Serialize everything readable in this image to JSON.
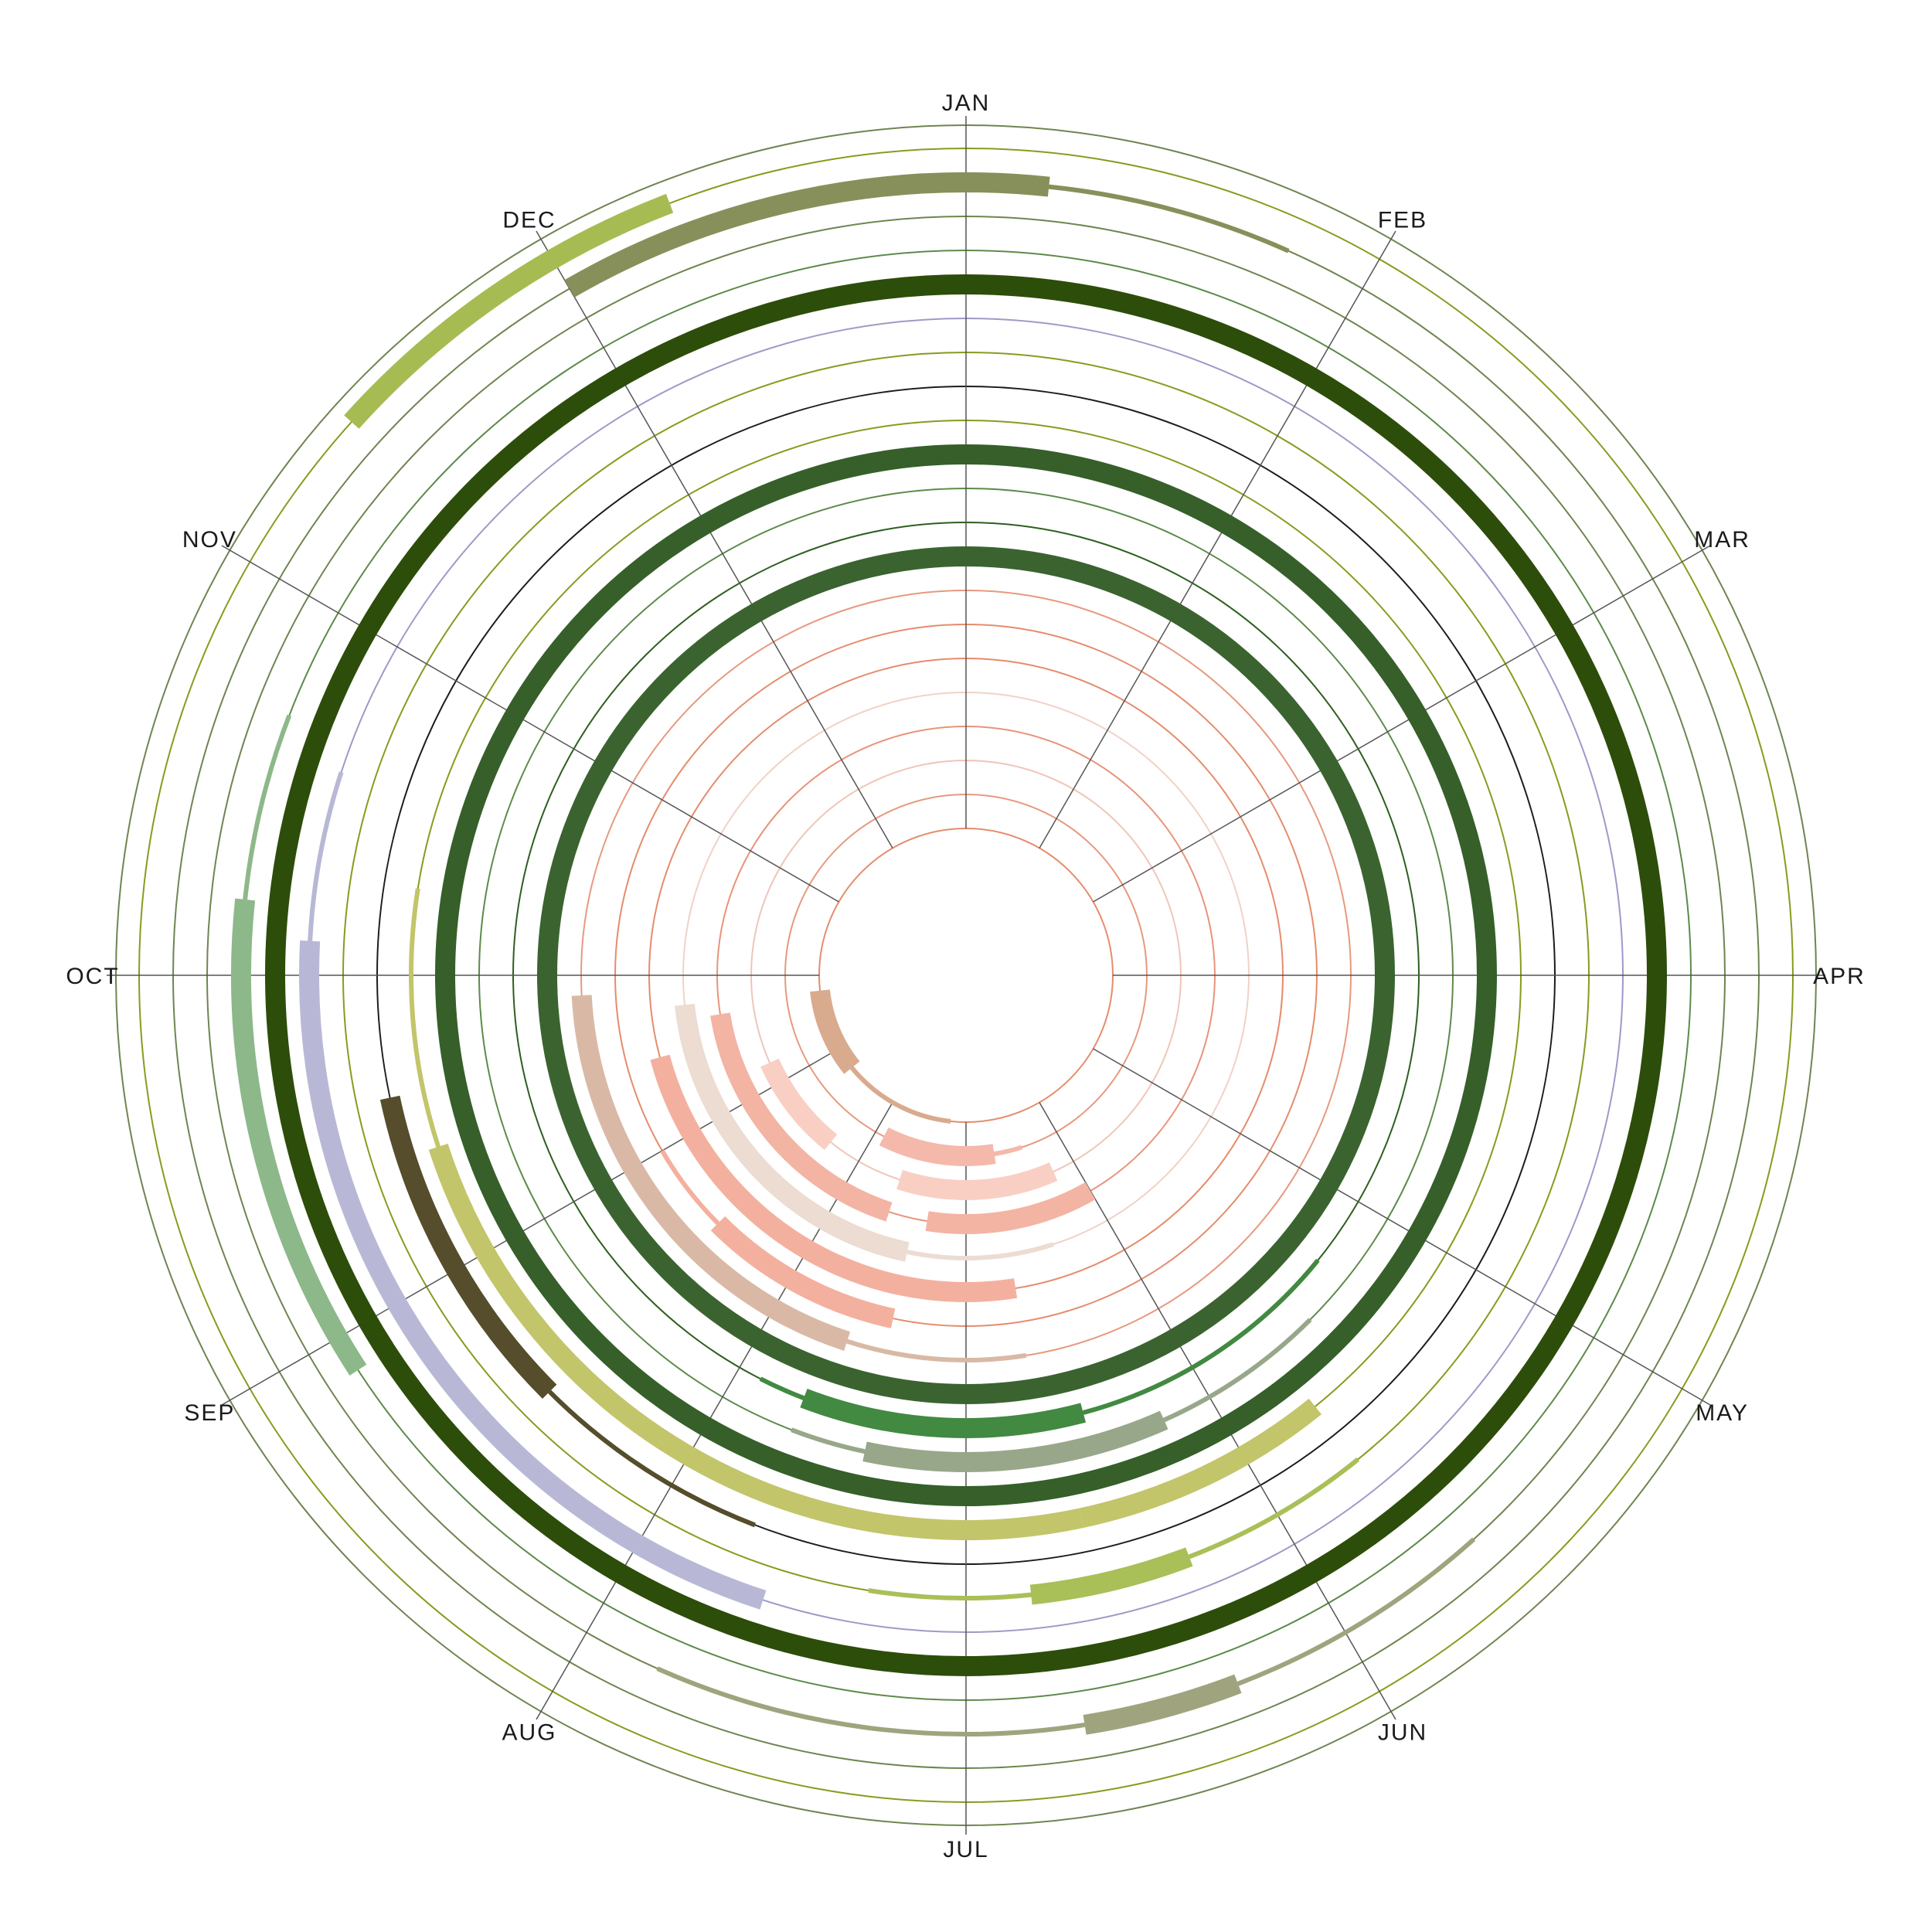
{
  "chart_data": {
    "type": "radial-timeline",
    "title": "",
    "months": [
      "JAN",
      "FEB",
      "MAR",
      "APR",
      "MAY",
      "JUN",
      "JUL",
      "AUG",
      "SEP",
      "OCT",
      "NOV",
      "DEC"
    ],
    "start_month": "JAN",
    "direction": "clockwise",
    "legend": "none",
    "rings": [
      {
        "ring": 1,
        "color": "#d9ab8e",
        "guide_color": "#e58c6c",
        "bars": [
          {
            "start": 6.2,
            "end": 8.7,
            "weight": "thin"
          },
          {
            "start": 7.7,
            "end": 8.8,
            "weight": "thick"
          }
        ]
      },
      {
        "ring": 2,
        "color": "#f4b9ab",
        "guide_color": "#e7997f",
        "bars": [
          {
            "start": 5.7,
            "end": 6.9,
            "weight": "thick"
          },
          {
            "start": 5.4,
            "end": 5.7,
            "weight": "thin"
          }
        ]
      },
      {
        "ring": 3,
        "color": "#f9cfc4",
        "guide_color": "#f0c5b8",
        "bars": [
          {
            "start": 5.2,
            "end": 6.6,
            "weight": "thick"
          },
          {
            "start": 7.3,
            "end": 8.2,
            "weight": "thick"
          }
        ]
      },
      {
        "ring": 4,
        "color": "#f3b4a4",
        "guide_color": "#e8947a",
        "bars": [
          {
            "start": 5.0,
            "end": 6.3,
            "weight": "thick"
          },
          {
            "start": 6.6,
            "end": 8.7,
            "weight": "thick"
          }
        ]
      },
      {
        "ring": 5,
        "color": "#ecdcd2",
        "guide_color": "#f0d2c6",
        "bars": [
          {
            "start": 5.4,
            "end": 6.4,
            "weight": "thin"
          },
          {
            "start": 6.4,
            "end": 8.8,
            "weight": "thick"
          }
        ]
      },
      {
        "ring": 6,
        "color": "#f4b09f",
        "guide_color": "#e58c6c",
        "bars": [
          {
            "start": 5.7,
            "end": 6.8,
            "weight": "thick"
          },
          {
            "start": 6.4,
            "end": 8.5,
            "weight": "thick"
          }
        ]
      },
      {
        "ring": 7,
        "color": "#f4b09f",
        "guide_color": "#e58c6c",
        "bars": [
          {
            "start": 6.4,
            "end": 7.5,
            "weight": "thick"
          },
          {
            "start": 7.5,
            "end": 8.0,
            "weight": "thin"
          }
        ]
      },
      {
        "ring": 8,
        "color": "#d9b9a6",
        "guide_color": "#e7997f",
        "bars": [
          {
            "start": 5.7,
            "end": 6.6,
            "weight": "thin"
          },
          {
            "start": 6.6,
            "end": 8.9,
            "weight": "thick"
          }
        ]
      },
      {
        "ring": 9,
        "color": "#3b6330",
        "guide_color": "#3b6330",
        "bars": [
          {
            "start": 0.0,
            "end": 12.0,
            "weight": "thick"
          }
        ]
      },
      {
        "ring": 10,
        "color": "#428942",
        "guide_color": "#2d5f1f",
        "bars": [
          {
            "start": 4.3,
            "end": 5.5,
            "weight": "thin"
          },
          {
            "start": 5.5,
            "end": 6.7,
            "weight": "thick"
          },
          {
            "start": 6.7,
            "end": 6.9,
            "weight": "thin"
          }
        ]
      },
      {
        "ring": 11,
        "color": "#98a78a",
        "guide_color": "#5d8a4a",
        "bars": [
          {
            "start": 4.5,
            "end": 5.2,
            "weight": "thin"
          },
          {
            "start": 5.2,
            "end": 6.4,
            "weight": "thick"
          },
          {
            "start": 6.4,
            "end": 6.7,
            "weight": "thin"
          }
        ]
      },
      {
        "ring": 12,
        "color": "#365f2a",
        "guide_color": "#2d5f1f",
        "bars": [
          {
            "start": 4.4,
            "end": 5.5,
            "weight": "thin"
          },
          {
            "start": 0.0,
            "end": 12.0,
            "weight": "thick"
          },
          {
            "start": 9.1,
            "end": 9.6,
            "weight": "thin"
          }
        ]
      },
      {
        "ring": 13,
        "color": "#c2c56a",
        "guide_color": "#8a9a1e",
        "bars": [
          {
            "start": 4.7,
            "end": 5.6,
            "weight": "thick"
          },
          {
            "start": 5.6,
            "end": 8.4,
            "weight": "thick"
          },
          {
            "start": 8.4,
            "end": 9.3,
            "weight": "thin"
          }
        ]
      },
      {
        "ring": 14,
        "color": "#554d2b",
        "guide_color": "#1c1c1c",
        "bars": [
          {
            "start": 7.5,
            "end": 8.6,
            "weight": "thick"
          },
          {
            "start": 6.7,
            "end": 7.5,
            "weight": "thin"
          }
        ]
      },
      {
        "ring": 15,
        "color": "#a9bf58",
        "guide_color": "#8a9a1e",
        "bars": [
          {
            "start": 4.7,
            "end": 5.3,
            "weight": "thin"
          },
          {
            "start": 5.3,
            "end": 5.8,
            "weight": "thick"
          },
          {
            "start": 5.8,
            "end": 6.3,
            "weight": "thin"
          }
        ]
      },
      {
        "ring": 16,
        "color": "#b8b8d6",
        "guide_color": "#9d9ac8",
        "bars": [
          {
            "start": 6.6,
            "end": 7.6,
            "weight": "thick"
          },
          {
            "start": 7.6,
            "end": 9.1,
            "weight": "thick"
          },
          {
            "start": 9.1,
            "end": 9.6,
            "weight": "thin"
          }
        ]
      },
      {
        "ring": 17,
        "color": "#2d4d0a",
        "guide_color": "#2d4d0a",
        "bars": [
          {
            "start": 0.0,
            "end": 12.0,
            "weight": "thick"
          }
        ]
      },
      {
        "ring": 18,
        "color": "#8db88a",
        "guide_color": "#5d8a4a",
        "bars": [
          {
            "start": 7.9,
            "end": 9.2,
            "weight": "thick"
          },
          {
            "start": 9.2,
            "end": 9.7,
            "weight": "thin"
          }
        ]
      },
      {
        "ring": 19,
        "color": "#a0a47e",
        "guide_color": "#6f8550",
        "bars": [
          {
            "start": 4.6,
            "end": 5.3,
            "weight": "thin"
          },
          {
            "start": 5.3,
            "end": 5.7,
            "weight": "thick"
          },
          {
            "start": 5.7,
            "end": 6.8,
            "weight": "thin"
          }
        ]
      },
      {
        "ring": 20,
        "color": "#87905a",
        "guide_color": "#6f8550",
        "bars": [
          {
            "start": 11.0,
            "end": 12.2,
            "weight": "thick"
          },
          {
            "start": 0.2,
            "end": 0.8,
            "weight": "thin"
          }
        ]
      },
      {
        "ring": 21,
        "color": "#a6bc52",
        "guide_color": "#8a9a1e",
        "bars": [
          {
            "start": 10.4,
            "end": 11.3,
            "weight": "thick"
          }
        ]
      }
    ]
  }
}
